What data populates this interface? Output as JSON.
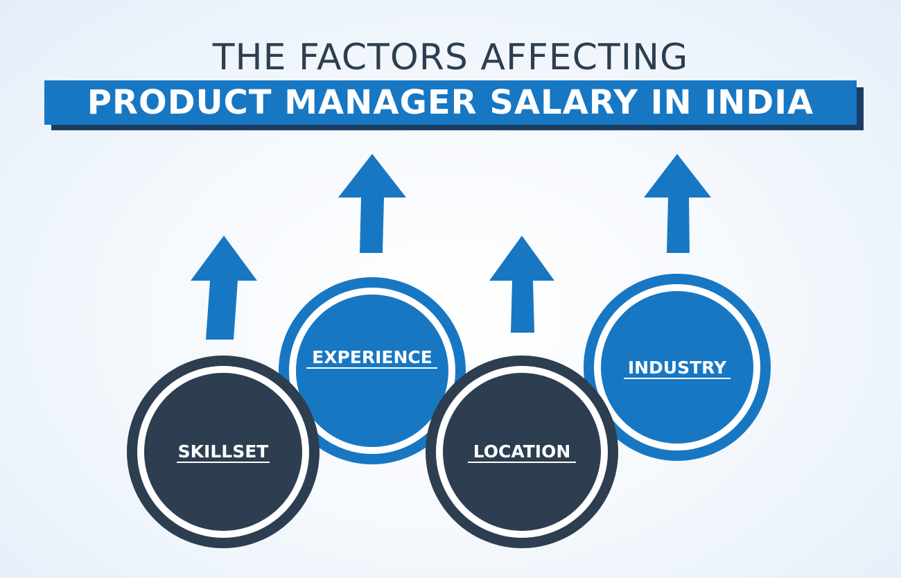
{
  "title": {
    "line1": "THE FACTORS AFFECTING",
    "line2": "PRODUCT MANAGER SALARY IN INDIA"
  },
  "factors": [
    {
      "label": "SKILLSET",
      "color": "#2d3e50"
    },
    {
      "label": "EXPERIENCE",
      "color": "#1877c2"
    },
    {
      "label": "LOCATION",
      "color": "#2d3e50"
    },
    {
      "label": "INDUSTRY",
      "color": "#1877c2"
    }
  ],
  "colors": {
    "navy": "#2d3e50",
    "blue": "#1877c2",
    "banner_shadow": "#1b3d63",
    "background": "#eef4fb"
  }
}
